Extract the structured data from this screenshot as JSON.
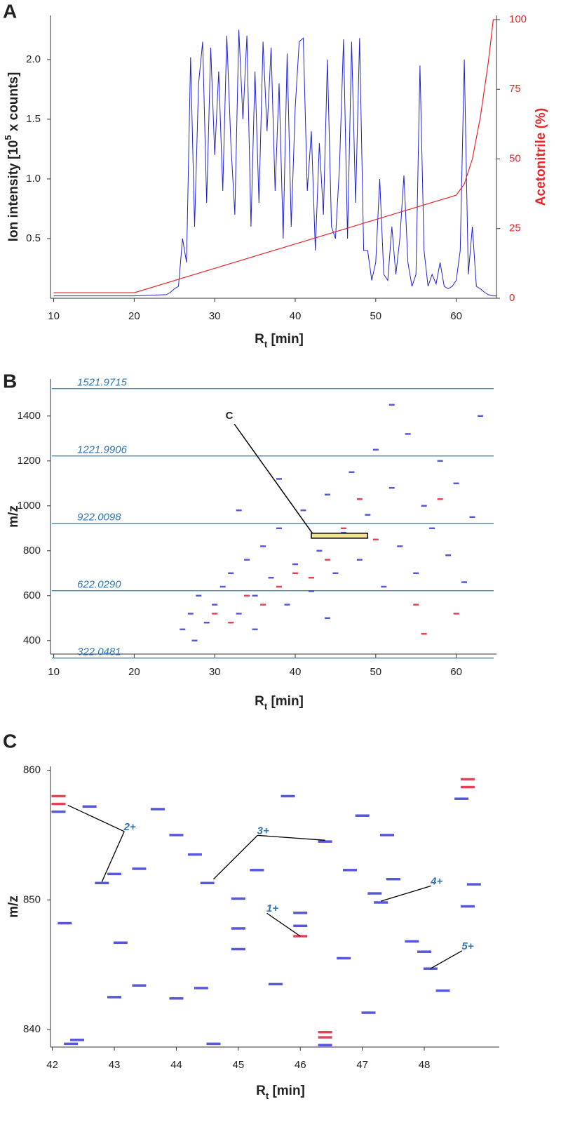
{
  "chart_data": [
    {
      "type": "line",
      "panel": "A",
      "xlabel": [
        "R",
        "t",
        " [min]"
      ],
      "ylabel": [
        "Ion intensity [10",
        "5",
        " x counts]"
      ],
      "y2label": "Acetonitrile (%)",
      "y2color": "#e8262a",
      "xlim": [
        9.6,
        65
      ],
      "ylim": [
        0,
        2.37
      ],
      "y2lim": [
        0,
        101.5
      ],
      "xticks": [
        10,
        20,
        30,
        40,
        50,
        60
      ],
      "yticks": [
        0.5,
        {
          "value": 1,
          "label": "1.0"
        },
        1.5,
        {
          "value": 2,
          "label": "2.0"
        }
      ],
      "y2ticks": [
        0,
        25,
        50,
        75,
        100
      ],
      "series": [
        {
          "color": "#2222cc",
          "x": [
            10,
            15,
            20,
            24,
            24.5,
            25,
            25.5,
            26,
            26.5,
            27,
            27.5,
            28,
            28.5,
            29,
            29.5,
            30,
            30.5,
            31,
            31.5,
            32,
            32.5,
            33,
            33.5,
            34,
            34.5,
            35,
            35.5,
            36,
            36.5,
            37,
            37.5,
            38,
            38.5,
            39,
            39.5,
            40,
            40.5,
            41,
            41.5,
            42,
            42.5,
            43,
            43.5,
            44,
            44.5,
            45,
            45.5,
            46,
            46.5,
            47,
            47.5,
            48,
            48.5,
            49,
            49.5,
            50,
            50.5,
            51,
            51.5,
            52,
            52.5,
            53,
            53.5,
            54,
            54.5,
            55,
            55.5,
            56,
            56.5,
            57,
            57.5,
            58,
            58.5,
            59,
            59.5,
            60,
            60.5,
            61,
            61.5,
            62,
            62.5,
            63,
            63.5,
            64,
            64.5,
            65
          ],
          "values": [
            0.02,
            0.02,
            0.02,
            0.03,
            0.05,
            0.08,
            0.1,
            0.5,
            0.3,
            2.02,
            0.6,
            1.8,
            2.15,
            0.8,
            2.1,
            1.2,
            1.9,
            0.9,
            2.2,
            1.3,
            0.7,
            2.25,
            1.5,
            2.2,
            0.6,
            1.9,
            0.8,
            2.15,
            1.4,
            2.1,
            0.9,
            1.8,
            0.5,
            2.05,
            0.6,
            1.6,
            2.15,
            2.18,
            0.9,
            1.4,
            0.4,
            1.3,
            0.7,
            2.0,
            0.6,
            0.5,
            1.1,
            2.17,
            0.5,
            2.15,
            0.8,
            2.18,
            0.4,
            0.4,
            0.15,
            0.3,
            1.0,
            0.2,
            0.15,
            0.6,
            0.2,
            0.5,
            1.03,
            0.3,
            0.1,
            0.2,
            1.95,
            0.4,
            0.1,
            0.2,
            0.12,
            0.3,
            0.1,
            0.08,
            0.1,
            0.15,
            0.4,
            2.0,
            0.2,
            0.6,
            0.1,
            0.08,
            0.05,
            0.03,
            0.02,
            0.02
          ]
        },
        {
          "color": "#e8262a",
          "axis": "y2",
          "x": [
            10,
            20,
            60,
            61,
            62,
            63,
            64,
            64.6,
            65
          ],
          "values": [
            2,
            2,
            37,
            41,
            50,
            65,
            85,
            100,
            100
          ]
        }
      ]
    },
    {
      "type": "scatter",
      "panel": "B",
      "xlabel": [
        "R",
        "t",
        " [min]"
      ],
      "ylabel": "m/z",
      "xlim": [
        9.6,
        65
      ],
      "ylim": [
        340,
        1565
      ],
      "xticks": [
        10,
        20,
        30,
        40,
        50,
        60
      ],
      "yticks": [
        400,
        600,
        800,
        1000,
        1200,
        1400
      ],
      "reference_lines": {
        "color": "#2e75b6",
        "values": [
          1521.9715,
          1221.9906,
          922.0098,
          622.029,
          322.0481
        ],
        "value_labels": [
          "1521.9715",
          "1221.9906",
          "922.0098",
          "622.0290",
          "322.0481"
        ]
      },
      "series": [
        {
          "color": "#3a3ad6",
          "x": [
            26,
            27,
            28,
            29,
            30,
            31,
            32,
            33,
            34,
            35,
            36,
            37,
            38,
            39,
            40,
            41,
            42,
            43,
            44,
            45,
            46,
            47,
            48,
            49,
            50,
            51,
            52,
            53,
            54,
            55,
            56,
            57,
            58,
            59,
            60,
            61,
            62,
            63,
            27.5,
            35,
            44,
            52,
            33,
            38
          ],
          "y": [
            450,
            520,
            600,
            480,
            560,
            640,
            700,
            520,
            760,
            600,
            820,
            680,
            900,
            560,
            740,
            980,
            620,
            800,
            1050,
            700,
            880,
            1150,
            760,
            960,
            1250,
            640,
            1080,
            820,
            1320,
            700,
            1000,
            900,
            1200,
            780,
            1100,
            660,
            950,
            1400,
            400,
            450,
            500,
            1450,
            980,
            1120
          ]
        },
        {
          "color": "#e0203a",
          "x": [
            30,
            32,
            34,
            36,
            38,
            40,
            42,
            44,
            46,
            48,
            50,
            55,
            58,
            60,
            56
          ],
          "y": [
            520,
            480,
            600,
            560,
            640,
            700,
            680,
            760,
            900,
            1030,
            850,
            560,
            1030,
            520,
            430
          ]
        }
      ],
      "box": {
        "label": "C",
        "color": "#f2e88a",
        "x": [
          42,
          49
        ],
        "y": [
          856,
          878
        ]
      }
    },
    {
      "type": "scatter",
      "panel": "C",
      "xlabel": [
        "R",
        "t",
        " [min]"
      ],
      "ylabel": "m/z",
      "xlim": [
        41.97,
        49.21
      ],
      "ylim": [
        838.65,
        860.3
      ],
      "xticks": [
        42,
        43,
        44,
        45,
        46,
        47,
        48
      ],
      "yticks": [
        840,
        850,
        860
      ],
      "series": [
        {
          "color": "#3a3ad6",
          "x": [
            42.1,
            42.6,
            42.8,
            43.0,
            43.4,
            43.7,
            44.0,
            44.3,
            44.5,
            44.4,
            44.0,
            43.4,
            43.0,
            42.4,
            42.3,
            45.0,
            45.0,
            45.0,
            45.3,
            45.6,
            46.0,
            46.0,
            46.4,
            46.4,
            46.8,
            46.7,
            47.1,
            47.2,
            47.3,
            47.5,
            47.4,
            47.8,
            48.0,
            48.1,
            48.3,
            48.6,
            48.8,
            48.7,
            42.2,
            43.1,
            44.6,
            45.8,
            47.0
          ],
          "y": [
            856.8,
            857.2,
            851.3,
            852.0,
            852.4,
            857.0,
            855.0,
            853.5,
            851.3,
            843.2,
            842.4,
            843.4,
            842.5,
            839.2,
            838.9,
            850.1,
            847.8,
            846.2,
            852.3,
            843.5,
            848.0,
            849.0,
            854.5,
            838.8,
            852.3,
            845.5,
            841.3,
            850.5,
            849.8,
            851.6,
            855.0,
            846.8,
            846.0,
            844.7,
            843.0,
            857.8,
            851.2,
            849.5,
            848.2,
            846.7,
            838.9,
            858.0,
            856.5
          ]
        },
        {
          "color": "#e0203a",
          "x": [
            42.1,
            42.1,
            46.0,
            46.4,
            46.4,
            48.7,
            48.7
          ],
          "y": [
            857.4,
            858.0,
            847.2,
            839.8,
            839.4,
            858.7,
            859.3
          ]
        }
      ],
      "annotations": [
        {
          "label": "2+",
          "x": 43.25,
          "y": 855.6,
          "targets": [
            [
              42.25,
              857.3
            ],
            [
              42.8,
              851.4
            ]
          ]
        },
        {
          "label": "3+",
          "x": 45.4,
          "y": 855.3,
          "targets": [
            [
              44.6,
              851.6
            ],
            [
              46.4,
              854.6
            ]
          ]
        },
        {
          "label": "1+",
          "x": 45.55,
          "y": 849.3,
          "targets": [
            [
              46.0,
              847.2
            ]
          ]
        },
        {
          "label": "4+",
          "x": 48.2,
          "y": 851.4,
          "targets": [
            [
              47.3,
              849.9
            ]
          ]
        },
        {
          "label": "5+",
          "x": 48.7,
          "y": 846.4,
          "targets": [
            [
              48.1,
              844.7
            ]
          ]
        }
      ]
    }
  ]
}
